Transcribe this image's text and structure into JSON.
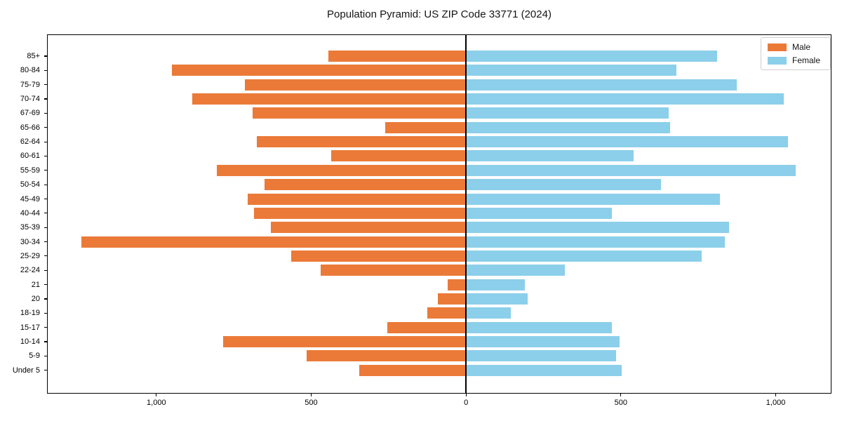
{
  "title": "Population Pyramid: US ZIP Code 33771 (2024)",
  "legend": {
    "male_label": "Male",
    "female_label": "Female"
  },
  "colors": {
    "male": "#eb7a38",
    "female": "#8bcfea",
    "axis": "#000000"
  },
  "chart_data": {
    "type": "bar",
    "subtype": "population-pyramid",
    "title": "Population Pyramid: US ZIP Code 33771 (2024)",
    "categories_top_to_bottom": [
      "85+",
      "80-84",
      "75-79",
      "70-74",
      "67-69",
      "65-66",
      "62-64",
      "60-61",
      "55-59",
      "50-54",
      "45-49",
      "40-44",
      "35-39",
      "30-34",
      "25-29",
      "22-24",
      "21",
      "20",
      "18-19",
      "15-17",
      "10-14",
      "5-9",
      "Under 5"
    ],
    "series": [
      {
        "name": "Male",
        "side": "left",
        "color": "#eb7a38",
        "values": [
          445,
          950,
          715,
          885,
          690,
          260,
          675,
          435,
          805,
          650,
          705,
          685,
          630,
          1243,
          565,
          470,
          60,
          90,
          125,
          255,
          785,
          515,
          345
        ]
      },
      {
        "name": "Female",
        "side": "right",
        "color": "#8bcfea",
        "values": [
          810,
          680,
          875,
          1025,
          655,
          660,
          1040,
          540,
          1065,
          630,
          820,
          470,
          850,
          835,
          760,
          320,
          190,
          200,
          145,
          470,
          495,
          485,
          503
        ]
      }
    ],
    "xlim": [
      -1353,
      1180
    ],
    "x_ticks": [
      -1000,
      -500,
      0,
      500,
      1000
    ],
    "x_tick_labels": [
      "1,000",
      "500",
      "0",
      "500",
      "1,000"
    ],
    "xlabel": "",
    "ylabel": "",
    "grid": false,
    "zero_axis_line": true,
    "legend_position": "upper right"
  }
}
